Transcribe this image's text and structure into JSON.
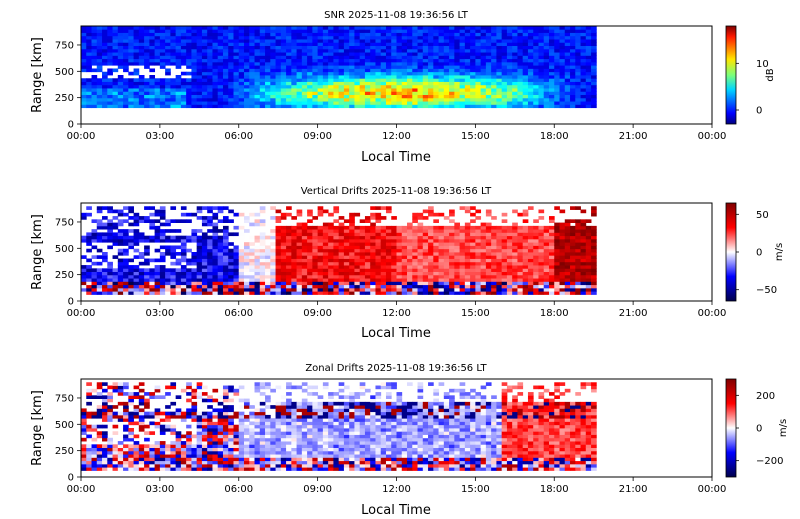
{
  "chart_data": [
    {
      "type": "heatmap",
      "title": "SNR 2025-11-08 19:36:56 LT",
      "xlabel": "Local Time",
      "ylabel": "Range [km]",
      "x_tick_labels": [
        "00:00",
        "03:00",
        "06:00",
        "09:00",
        "12:00",
        "15:00",
        "18:00",
        "21:00",
        "00:00"
      ],
      "x_range_hours": [
        0,
        24
      ],
      "data_end_hour": 19.6,
      "ylim": [
        0,
        930
      ],
      "y_ticks": [
        0,
        250,
        500,
        750
      ],
      "colorbar": {
        "label": "dB",
        "range": [
          -3,
          18
        ],
        "ticks": [
          0,
          10
        ],
        "colormap": "jet"
      },
      "description_profile": {
        "bottom_km": 160,
        "top_km": 930,
        "low_range_enhancement": {
          "from_hour": 5.5,
          "to_hour": 19.0,
          "peak_range_km": 300,
          "peak_value_db": 12
        },
        "typical_value_db": 0
      }
    },
    {
      "type": "heatmap",
      "title": "Vertical Drifts 2025-11-08 19:36:56 LT",
      "xlabel": "Local Time",
      "ylabel": "Range [km]",
      "x_tick_labels": [
        "00:00",
        "03:00",
        "06:00",
        "09:00",
        "12:00",
        "15:00",
        "18:00",
        "21:00",
        "00:00"
      ],
      "x_range_hours": [
        0,
        24
      ],
      "data_end_hour": 19.6,
      "ylim": [
        0,
        930
      ],
      "y_ticks": [
        0,
        250,
        500,
        750
      ],
      "colorbar": {
        "label": "m/s",
        "range": [
          -65,
          65
        ],
        "ticks": [
          -50,
          0,
          50
        ],
        "colormap": "seismic"
      },
      "description_profile": {
        "night_downward_m_s": -45,
        "daytime_upward_m_s": 40,
        "pre_reversal_peak_m_s": 60,
        "pre_reversal_hour": 19.0
      }
    },
    {
      "type": "heatmap",
      "title": "Zonal Drifts 2025-11-08 19:36:56 LT",
      "xlabel": "Local Time",
      "ylabel": "Range [km]",
      "x_tick_labels": [
        "00:00",
        "03:00",
        "06:00",
        "09:00",
        "12:00",
        "15:00",
        "18:00",
        "21:00",
        "00:00"
      ],
      "x_range_hours": [
        0,
        24
      ],
      "data_end_hour": 19.6,
      "ylim": [
        0,
        930
      ],
      "y_ticks": [
        0,
        250,
        500,
        750
      ],
      "colorbar": {
        "label": "m/s",
        "range": [
          -300,
          300
        ],
        "ticks": [
          -200,
          0,
          200
        ],
        "colormap": "seismic"
      },
      "description_profile": {
        "daytime_westward_m_s": -60,
        "evening_eastward_m_s": 120
      }
    }
  ]
}
